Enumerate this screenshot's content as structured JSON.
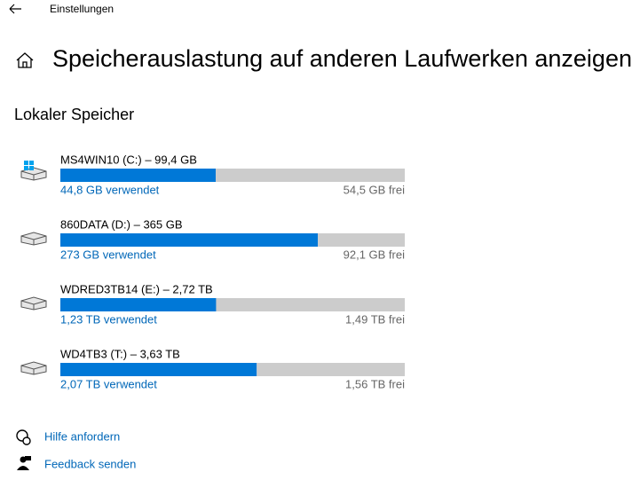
{
  "header": {
    "title": "Einstellungen"
  },
  "page": {
    "title": "Speicherauslastung auf anderen Laufwerken anzeigen",
    "section": "Lokaler Speicher"
  },
  "drives": [
    {
      "name": "MS4WIN10 (C:) – 99,4 GB",
      "used": 44.8,
      "free": 54.5,
      "used_label": "44,8 GB verwendet",
      "free_label": "54,5 GB frei"
    },
    {
      "name": "860DATA (D:) – 365 GB",
      "used": 273,
      "free": 92.1,
      "used_label": "273 GB verwendet",
      "free_label": "92,1 GB frei"
    },
    {
      "name": "WDRED3TB14 (E:) – 2,72 TB",
      "used": 1.23,
      "free": 1.49,
      "used_label": "1,23 TB verwendet",
      "free_label": "1,49 TB frei"
    },
    {
      "name": "WD4TB3 (T:) – 3,63 TB",
      "used": 2.07,
      "free": 1.56,
      "used_label": "2,07 TB verwendet",
      "free_label": "1,56 TB frei"
    }
  ],
  "links": [
    "Hilfe anfordern",
    "Feedback senden"
  ]
}
